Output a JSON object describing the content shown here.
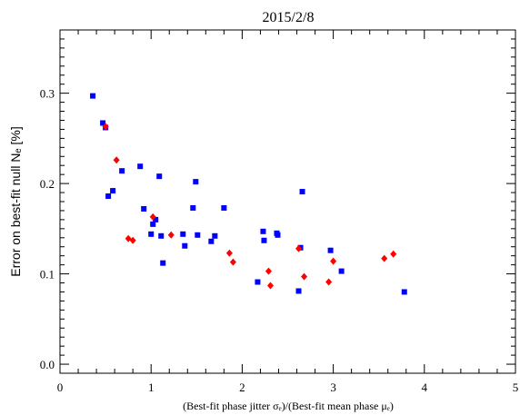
{
  "chart_data": {
    "type": "scatter",
    "title": "2015/2/8",
    "xlabel": "(Best-fit phase jitter σₑ)/(Best-fit mean phase μₑ)",
    "ylabel": "Error on best-fit null Nₑ [%]",
    "xlim": [
      0,
      5
    ],
    "ylim": [
      -0.01,
      0.37
    ],
    "x_ticks": [
      0,
      1,
      2,
      3,
      4,
      5
    ],
    "x_tick_labels": [
      "0",
      "1",
      "2",
      "3",
      "4",
      "5"
    ],
    "y_ticks": [
      0.0,
      0.1,
      0.2,
      0.3
    ],
    "y_tick_labels": [
      "0.0",
      "0.1",
      "0.2",
      "0.3"
    ],
    "grid": false,
    "series": [
      {
        "marker": "square",
        "color": "#0000ff",
        "points": [
          {
            "x": 0.36,
            "y": 0.297
          },
          {
            "x": 0.47,
            "y": 0.267
          },
          {
            "x": 0.5,
            "y": 0.262
          },
          {
            "x": 0.53,
            "y": 0.186
          },
          {
            "x": 0.58,
            "y": 0.192
          },
          {
            "x": 0.68,
            "y": 0.214
          },
          {
            "x": 0.88,
            "y": 0.219
          },
          {
            "x": 0.92,
            "y": 0.172
          },
          {
            "x": 1.0,
            "y": 0.144
          },
          {
            "x": 1.02,
            "y": 0.155
          },
          {
            "x": 1.05,
            "y": 0.16
          },
          {
            "x": 1.09,
            "y": 0.208
          },
          {
            "x": 1.11,
            "y": 0.142
          },
          {
            "x": 1.13,
            "y": 0.112
          },
          {
            "x": 1.35,
            "y": 0.144
          },
          {
            "x": 1.37,
            "y": 0.131
          },
          {
            "x": 1.46,
            "y": 0.173
          },
          {
            "x": 1.49,
            "y": 0.202
          },
          {
            "x": 1.51,
            "y": 0.143
          },
          {
            "x": 1.66,
            "y": 0.136
          },
          {
            "x": 1.7,
            "y": 0.142
          },
          {
            "x": 1.8,
            "y": 0.173
          },
          {
            "x": 2.17,
            "y": 0.091
          },
          {
            "x": 2.23,
            "y": 0.147
          },
          {
            "x": 2.24,
            "y": 0.137
          },
          {
            "x": 2.38,
            "y": 0.145
          },
          {
            "x": 2.39,
            "y": 0.143
          },
          {
            "x": 2.62,
            "y": 0.081
          },
          {
            "x": 2.64,
            "y": 0.129
          },
          {
            "x": 2.66,
            "y": 0.191
          },
          {
            "x": 2.97,
            "y": 0.126
          },
          {
            "x": 3.09,
            "y": 0.103
          },
          {
            "x": 3.78,
            "y": 0.08
          }
        ]
      },
      {
        "marker": "diamond",
        "color": "#ff0000",
        "points": [
          {
            "x": 0.5,
            "y": 0.263
          },
          {
            "x": 0.62,
            "y": 0.226
          },
          {
            "x": 0.75,
            "y": 0.139
          },
          {
            "x": 0.8,
            "y": 0.137
          },
          {
            "x": 1.02,
            "y": 0.163
          },
          {
            "x": 1.22,
            "y": 0.143
          },
          {
            "x": 1.86,
            "y": 0.123
          },
          {
            "x": 1.9,
            "y": 0.113
          },
          {
            "x": 2.29,
            "y": 0.103
          },
          {
            "x": 2.31,
            "y": 0.087
          },
          {
            "x": 2.62,
            "y": 0.128
          },
          {
            "x": 2.68,
            "y": 0.097
          },
          {
            "x": 2.95,
            "y": 0.091
          },
          {
            "x": 3.0,
            "y": 0.114
          },
          {
            "x": 3.56,
            "y": 0.117
          },
          {
            "x": 3.66,
            "y": 0.122
          }
        ]
      }
    ]
  }
}
